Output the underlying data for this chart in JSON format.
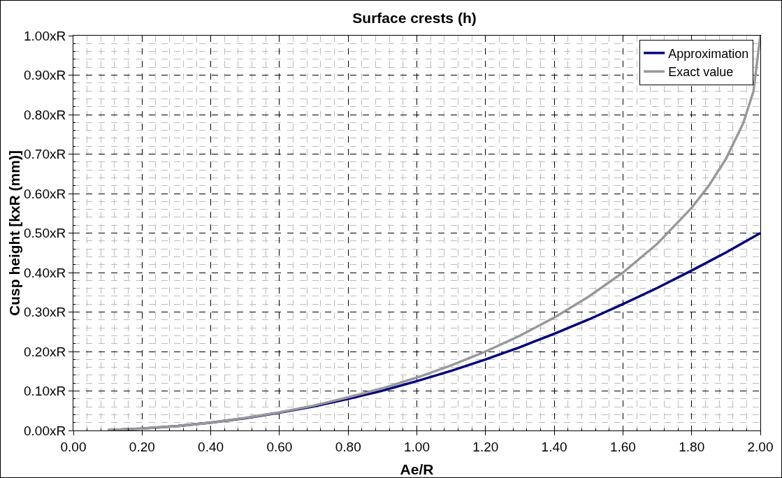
{
  "chart_data": {
    "type": "line",
    "title": "Surface crests (h)",
    "xlabel": "Ae/R",
    "ylabel": "Cusp height [kxR (mm)]",
    "xlim": [
      0,
      2
    ],
    "ylim": [
      0,
      1
    ],
    "xticks": [
      {
        "value": 0,
        "label": "0.00"
      },
      {
        "value": 0.2,
        "label": "0.20"
      },
      {
        "value": 0.4,
        "label": "0.40"
      },
      {
        "value": 0.6,
        "label": "0.60"
      },
      {
        "value": 0.8,
        "label": "0.80"
      },
      {
        "value": 1,
        "label": "1.00"
      },
      {
        "value": 1.2,
        "label": "1.20"
      },
      {
        "value": 1.4,
        "label": "1.40"
      },
      {
        "value": 1.6,
        "label": "1.60"
      },
      {
        "value": 1.8,
        "label": "1.80"
      },
      {
        "value": 2,
        "label": "2.00"
      }
    ],
    "yticks": [
      {
        "value": 0,
        "label": "0.00xR"
      },
      {
        "value": 0.1,
        "label": "0.10xR"
      },
      {
        "value": 0.2,
        "label": "0.20xR"
      },
      {
        "value": 0.3,
        "label": "0.30xR"
      },
      {
        "value": 0.4,
        "label": "0.40xR"
      },
      {
        "value": 0.5,
        "label": "0.50xR"
      },
      {
        "value": 0.6,
        "label": "0.60xR"
      },
      {
        "value": 0.7,
        "label": "0.70xR"
      },
      {
        "value": 0.8,
        "label": "0.80xR"
      },
      {
        "value": 0.9,
        "label": "0.90xR"
      },
      {
        "value": 1,
        "label": "1.00xR"
      }
    ],
    "grid": true,
    "legend": "top right",
    "marker": "none",
    "line_style": "solid",
    "series": [
      {
        "name": "Approximation",
        "color": "#000080",
        "x": [
          0.1,
          0.2,
          0.3,
          0.4,
          0.5,
          0.6,
          0.7,
          0.8,
          0.9,
          1.0,
          1.1,
          1.2,
          1.3,
          1.4,
          1.5,
          1.6,
          1.7,
          1.8,
          1.9,
          2.0
        ],
        "values": [
          0.001,
          0.005,
          0.011,
          0.02,
          0.031,
          0.045,
          0.061,
          0.08,
          0.101,
          0.125,
          0.151,
          0.18,
          0.211,
          0.245,
          0.281,
          0.32,
          0.361,
          0.405,
          0.451,
          0.5
        ]
      },
      {
        "name": "Exact value",
        "color": "#999999",
        "x": [
          0.1,
          0.2,
          0.3,
          0.4,
          0.5,
          0.6,
          0.7,
          0.8,
          0.9,
          1.0,
          1.1,
          1.2,
          1.3,
          1.4,
          1.5,
          1.6,
          1.7,
          1.8,
          1.85,
          1.9,
          1.95,
          1.98,
          2.0
        ],
        "values": [
          0.001,
          0.005,
          0.011,
          0.02,
          0.032,
          0.046,
          0.063,
          0.084,
          0.107,
          0.134,
          0.165,
          0.2,
          0.24,
          0.286,
          0.339,
          0.4,
          0.473,
          0.564,
          0.62,
          0.688,
          0.778,
          0.859,
          1.0
        ]
      }
    ]
  }
}
